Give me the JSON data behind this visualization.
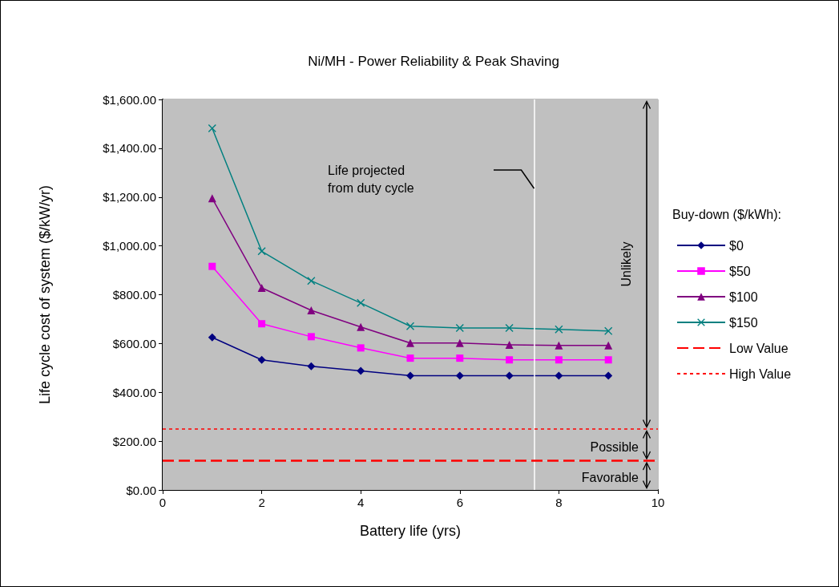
{
  "chart_data": {
    "type": "line",
    "title": "Ni/MH - Power Reliability & Peak Shaving",
    "xlabel": "Battery life (yrs)",
    "ylabel": "Life cycle cost of system ($/kW/yr)",
    "legend_title": "Buy-down ($/kWh):",
    "legend": "right",
    "grid": false,
    "line_style": "solid",
    "x": [
      1,
      2,
      3,
      4,
      5,
      6,
      7,
      8,
      9
    ],
    "xlim": [
      0,
      10
    ],
    "xticks": [
      0,
      2,
      4,
      6,
      8,
      10
    ],
    "ylim": [
      0,
      1600
    ],
    "yticks": [
      {
        "value": 0,
        "label": "$0.00"
      },
      {
        "value": 200,
        "label": "$200.00"
      },
      {
        "value": 400,
        "label": "$400.00"
      },
      {
        "value": 600,
        "label": "$600.00"
      },
      {
        "value": 800,
        "label": "$800.00"
      },
      {
        "value": 1000,
        "label": "$1,000.00"
      },
      {
        "value": 1200,
        "label": "$1,200.00"
      },
      {
        "value": 1400,
        "label": "$1,400.00"
      },
      {
        "value": 1600,
        "label": "$1,600.00"
      }
    ],
    "series": [
      {
        "name": "$0",
        "color": "#000080",
        "marker": "diamond",
        "values": [
          625,
          533,
          507,
          488,
          468,
          468,
          468,
          468,
          468
        ]
      },
      {
        "name": "$50",
        "color": "#ff00ff",
        "marker": "square",
        "values": [
          916,
          681,
          628,
          582,
          540,
          540,
          533,
          533,
          533
        ]
      },
      {
        "name": "$100",
        "color": "#800080",
        "marker": "triangle",
        "values": [
          1195,
          828,
          736,
          668,
          602,
          602,
          595,
          592,
          592
        ]
      },
      {
        "name": "$150",
        "color": "#008080",
        "marker": "cross",
        "values": [
          1482,
          978,
          857,
          766,
          671,
          664,
          664,
          658,
          651
        ]
      }
    ],
    "ref_lines": [
      {
        "axis": "x",
        "value": 7.5,
        "color": "#ffffff"
      },
      {
        "axis": "y",
        "value": 120,
        "label": "Low Value",
        "color": "#ff0000",
        "line_style": "dashed"
      },
      {
        "axis": "y",
        "value": 250,
        "label": "High Value",
        "color": "#ff0000",
        "line_style": "dotted"
      }
    ],
    "bands": [
      {
        "axis": "y",
        "from": 0,
        "to": 120,
        "label": "Favorable",
        "color": "#c0c0c0"
      },
      {
        "axis": "y",
        "from": 120,
        "to": 250,
        "label": "Possible",
        "color": "#c0c0c0"
      },
      {
        "axis": "y",
        "from": 250,
        "to": 1600,
        "label": "Unlikely",
        "color": "#c0c0c0"
      }
    ],
    "annotations": [
      "Life projected\nfrom duty cycle"
    ]
  }
}
